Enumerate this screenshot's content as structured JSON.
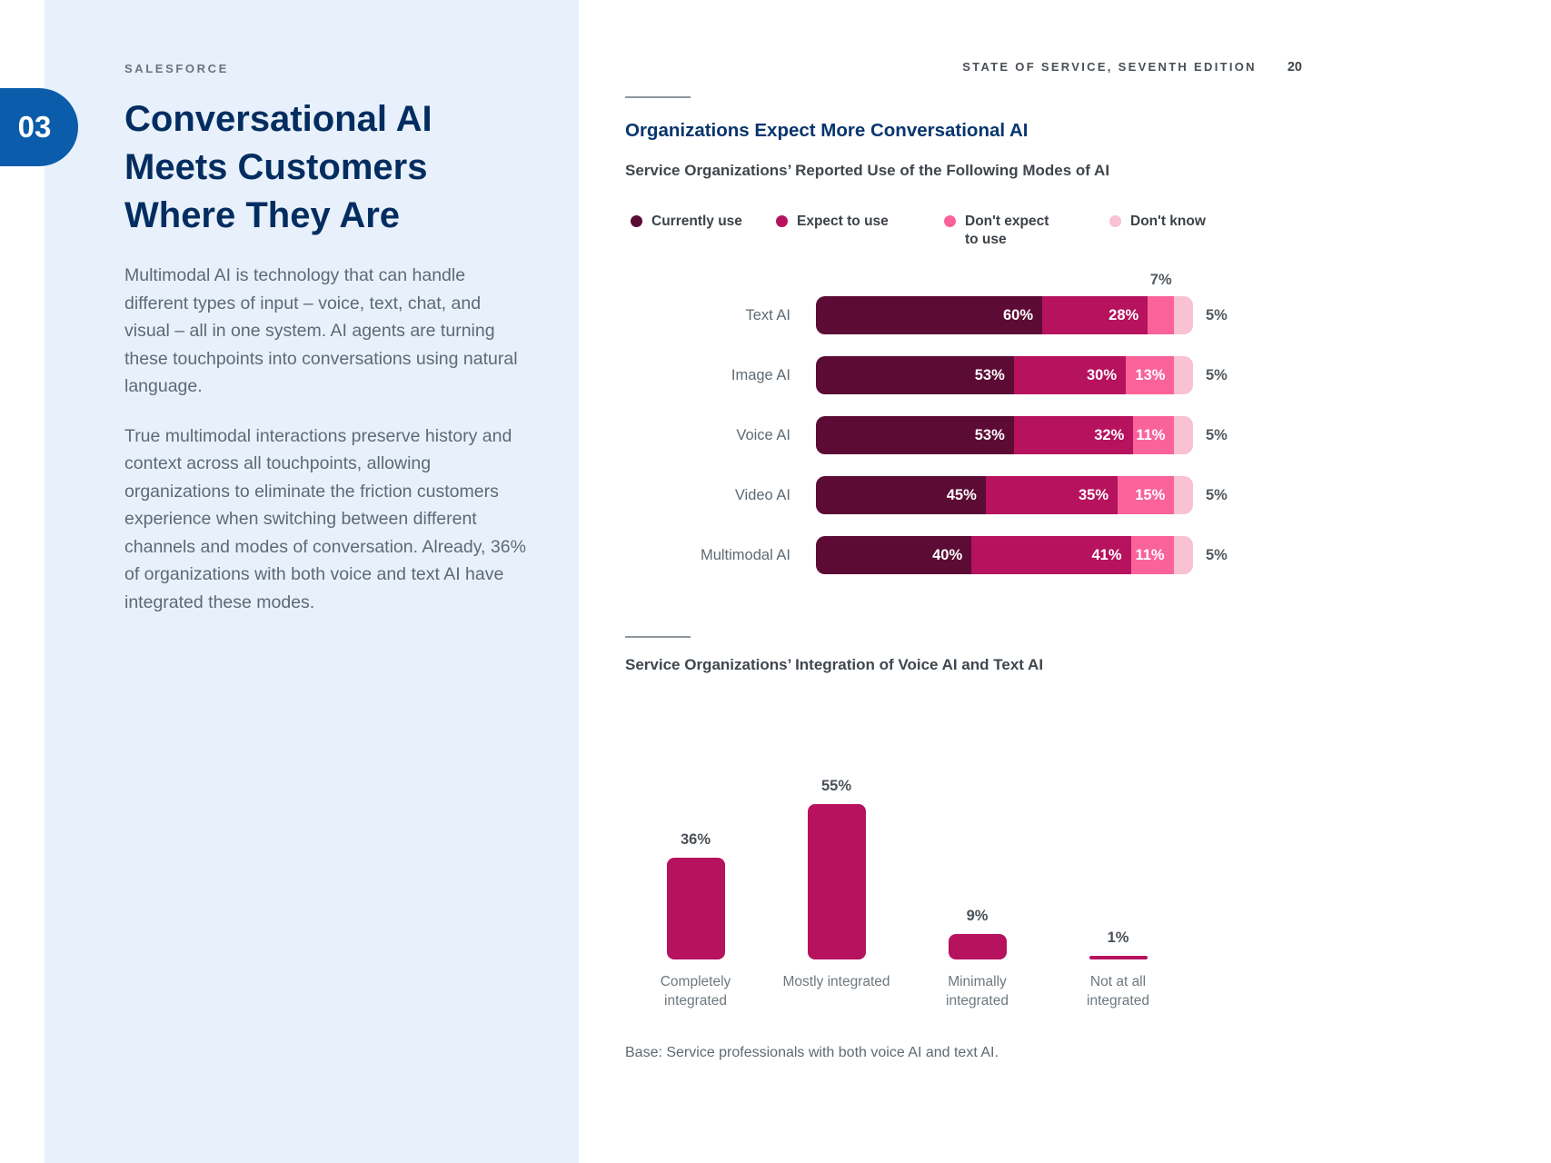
{
  "page": {
    "brand": "SALESFORCE",
    "chapter_number": "03",
    "title_lines": [
      "Conversational AI",
      "Meets Customers",
      "Where They Are"
    ],
    "paragraphs": [
      "Multimodal AI is technology that can handle different types of input – voice, text, chat, and visual – all in one system. AI agents are turning these touchpoints into conversations using natural language.",
      "True multimodal interactions preserve history and context across all touchpoints, allowing organizations to eliminate the friction customers experience when switching between different channels and modes of conversation. Already, 36% of organizations with both voice and text AI have integrated these modes."
    ]
  },
  "header": {
    "edition": "STATE OF SERVICE, SEVENTH EDITION",
    "page_number": "20"
  },
  "right": {
    "section_title": "Organizations Expect More Conversational AI",
    "base_note": "Base: Service professionals with both voice AI and text AI."
  },
  "colors": {
    "accent_blue": "#0b5cab",
    "navy": "#032d60",
    "panel_blue": "#e8f1fb",
    "currently_use": "#5c0b34",
    "expect_to_use": "#b6125e",
    "dont_expect_to_use": "#f9639a",
    "dont_know": "#f8c2d3"
  },
  "chart_data": [
    {
      "type": "bar",
      "stacked": true,
      "orientation": "horizontal",
      "title": "Organizations Expect More Conversational AI",
      "subtitle": "Service Organizations’ Reported Use of the Following Modes of AI",
      "unit": "%",
      "legend_position": "top",
      "categories": [
        "Text AI",
        "Image AI",
        "Voice AI",
        "Video AI",
        "Multimodal AI"
      ],
      "series": [
        {
          "name": "Currently use",
          "color": "#5c0b34",
          "values": [
            60,
            53,
            53,
            45,
            40
          ]
        },
        {
          "name": "Expect to use",
          "color": "#b6125e",
          "values": [
            28,
            30,
            32,
            35,
            41
          ]
        },
        {
          "name": "Don't expect to use",
          "color": "#f9639a",
          "values": [
            7,
            13,
            11,
            15,
            11
          ]
        },
        {
          "name": "Don't know",
          "color": "#f8c2d3",
          "values": [
            5,
            5,
            5,
            5,
            5
          ]
        }
      ]
    },
    {
      "type": "bar",
      "orientation": "vertical",
      "title": "Service Organizations’ Integration of Voice AI and Text AI",
      "unit": "%",
      "ylim": [
        0,
        60
      ],
      "grid": false,
      "color": "#b6125e",
      "categories": [
        "Completely integrated",
        "Mostly integrated",
        "Minimally integrated",
        "Not at all integrated"
      ],
      "values": [
        36,
        55,
        9,
        1
      ],
      "note": "Base: Service professionals with both voice AI and text AI."
    }
  ]
}
